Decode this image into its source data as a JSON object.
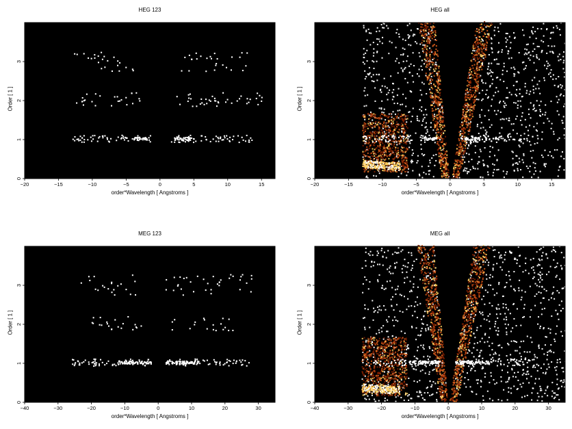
{
  "chart_data": [
    {
      "type": "heatmap",
      "title": "HEG 123",
      "xlabel": "order*Wavelength [ Angstroms ]",
      "ylabel": "Order [ 1 ]",
      "xlim": [
        -20,
        17
      ],
      "ylim": [
        0,
        4
      ],
      "xticks": [
        -20,
        -15,
        -10,
        -5,
        0,
        5,
        10,
        15
      ],
      "yticks": [
        0,
        1,
        2,
        3
      ],
      "grid": false,
      "bands": [
        {
          "order": 1,
          "ranges": [
            [
              -13,
              -1.5
            ],
            [
              1.5,
              13.5
            ]
          ],
          "bright": [
            [
              -4,
              -2
            ],
            [
              2,
              4.5
            ]
          ]
        },
        {
          "order": 2,
          "ranges": [
            [
              -13,
              -3
            ],
            [
              2,
              15
            ]
          ],
          "bright": []
        },
        {
          "order": 3,
          "ranges": [
            [
              -13,
              -4
            ],
            [
              3,
              13
            ]
          ],
          "bright": []
        }
      ]
    },
    {
      "type": "heatmap",
      "title": "HEG all",
      "xlabel": "order*Wavelength [ Angstroms ]",
      "ylabel": "Order [ 1 ]",
      "xlim": [
        -20,
        17
      ],
      "ylim": [
        0,
        4
      ],
      "xticks": [
        -20,
        -15,
        -10,
        -5,
        0,
        5,
        10,
        15
      ],
      "yticks": [
        0,
        1,
        2,
        3
      ],
      "grid": false,
      "wedge": {
        "left_slope": 3.0,
        "right_slope": 4.5,
        "x_min": -13,
        "x_max": 17
      },
      "bands": [
        {
          "order": 1,
          "ranges": [
            [
              -13,
              -1.5
            ],
            [
              1.5,
              13.5
            ]
          ],
          "bright": [
            [
              -4,
              -2
            ],
            [
              2,
              4.5
            ]
          ]
        }
      ]
    },
    {
      "type": "heatmap",
      "title": "MEG 123",
      "xlabel": "order*Wavelength [ Angstroms ]",
      "ylabel": "Order [ 1 ]",
      "xlim": [
        -40,
        35
      ],
      "ylim": [
        0,
        4
      ],
      "xticks": [
        -40,
        -30,
        -20,
        -10,
        0,
        10,
        20,
        30
      ],
      "yticks": [
        0,
        1,
        2,
        3
      ],
      "grid": false,
      "bands": [
        {
          "order": 1,
          "ranges": [
            [
              -26,
              -3
            ],
            [
              3,
              27
            ]
          ],
          "bright": [
            [
              -12,
              -2
            ],
            [
              2,
              12
            ]
          ]
        },
        {
          "order": 2,
          "ranges": [
            [
              -22,
              -5
            ],
            [
              4,
              25
            ]
          ],
          "bright": []
        },
        {
          "order": 3,
          "ranges": [
            [
              -25,
              -6
            ],
            [
              2,
              28
            ]
          ],
          "bright": []
        }
      ]
    },
    {
      "type": "heatmap",
      "title": "MEG all",
      "xlabel": "order*Wavelength [ Angstroms ]",
      "ylabel": "Order [ 1 ]",
      "xlim": [
        -40,
        35
      ],
      "ylim": [
        0,
        4
      ],
      "xticks": [
        -40,
        -30,
        -20,
        -10,
        0,
        10,
        20,
        30
      ],
      "yticks": [
        0,
        1,
        2,
        3
      ],
      "grid": false,
      "wedge": {
        "left_slope": 6.0,
        "right_slope": 9.0,
        "x_min": -26,
        "x_max": 35
      },
      "bands": [
        {
          "order": 1,
          "ranges": [
            [
              -26,
              -3
            ],
            [
              3,
              27
            ]
          ],
          "bright": [
            [
              -12,
              -2
            ],
            [
              2,
              12
            ]
          ]
        }
      ]
    }
  ],
  "colors": {
    "background": "#000000",
    "faint": "#ffffff",
    "warm_low": "#7a1e00",
    "warm_mid": "#d0581a",
    "warm_high": "#ffd060"
  }
}
